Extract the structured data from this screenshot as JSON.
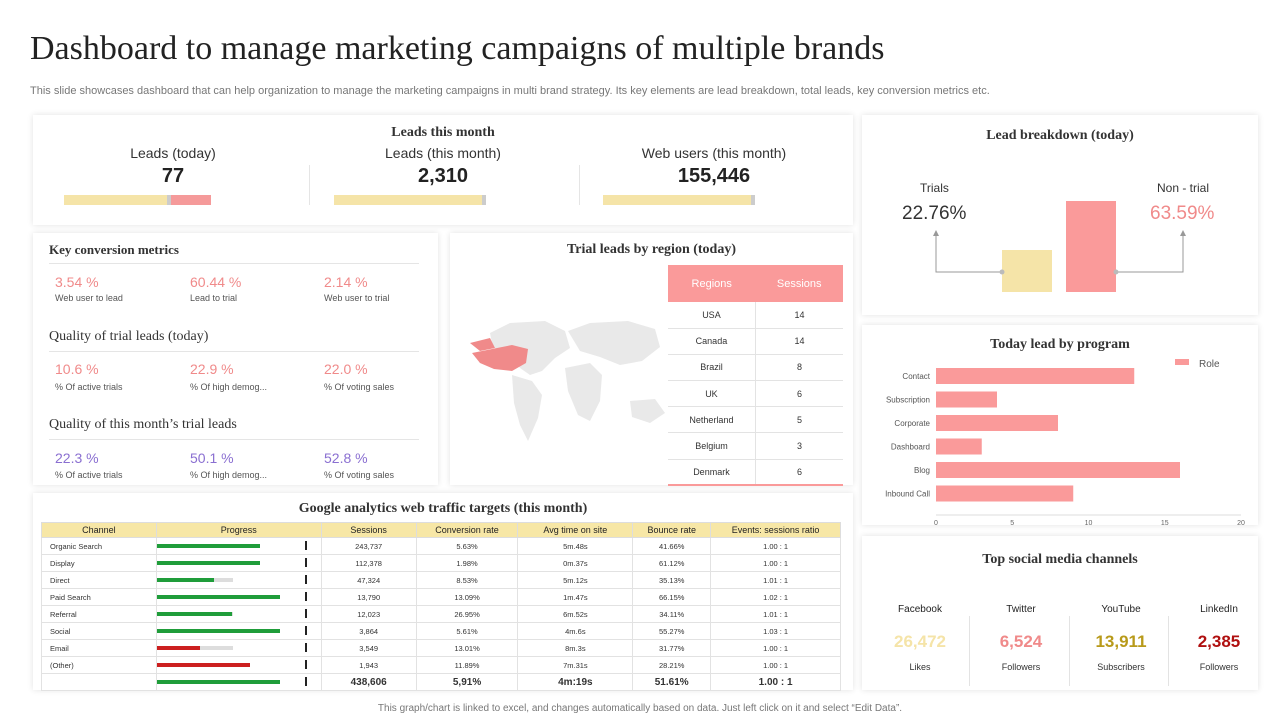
{
  "title": "Dashboard to manage marketing campaigns of multiple brands",
  "subtitle": "This slide showcases dashboard that can help organization to manage the marketing campaigns in multi brand strategy. Its key elements are lead breakdown, total leads, key conversion metrics etc.",
  "colors": {
    "pink": "#fa9a9a",
    "yellow": "#f7e7a6",
    "purple": "#8a6fd1",
    "green": "#1f9d3a",
    "red": "#cc1f1f",
    "gold": "#b89a1a",
    "darkred": "#b01010",
    "paleyellow": "#f5e4a8"
  },
  "leads_card": {
    "title": "Leads this month",
    "kpis": [
      {
        "label": "Leads (today)",
        "value": "77"
      },
      {
        "label": "Leads (this month)",
        "value": "2,310"
      },
      {
        "label": "Web users (this month)",
        "value": "155,446"
      }
    ]
  },
  "lead_breakdown": {
    "title": "Lead breakdown (today)",
    "trials_label": "Trials",
    "trials_value": "22.76%",
    "nontrial_label": "Non - trial",
    "nontrial_value": "63.59%"
  },
  "conversion": {
    "title": "Key conversion metrics",
    "metrics": [
      {
        "value": "3.54 %",
        "label": "Web user to lead"
      },
      {
        "value": "60.44 %",
        "label": "Lead to trial"
      },
      {
        "value": "2.14 %",
        "label": "Web user to trial"
      }
    ],
    "quality_today_title": "Quality of trial leads (today)",
    "quality_today": [
      {
        "value": "10.6 %",
        "label": "% Of active trials"
      },
      {
        "value": "22.9 %",
        "label": "% Of high demog..."
      },
      {
        "value": "22.0 %",
        "label": "% Of voting sales"
      }
    ],
    "quality_month_title": "Quality of this month’s trial leads",
    "quality_month": [
      {
        "value": "22.3 %",
        "label": "% Of active trials"
      },
      {
        "value": "50.1 %",
        "label": "% Of high demog..."
      },
      {
        "value": "52.8 %",
        "label": "% Of voting sales"
      }
    ]
  },
  "region": {
    "title": "Trial leads by region (today)",
    "headers": [
      "Regions",
      "Sessions"
    ],
    "rows": [
      [
        "USA",
        "14"
      ],
      [
        "Canada",
        "14"
      ],
      [
        "Brazil",
        "8"
      ],
      [
        "UK",
        "6"
      ],
      [
        "Netherland",
        "5"
      ],
      [
        "Belgium",
        "3"
      ],
      [
        "Denmark",
        "6"
      ]
    ]
  },
  "analytics": {
    "title": "Google analytics web traffic targets (this month)",
    "headers": [
      "Channel",
      "Progress",
      "Sessions",
      "Conversion rate",
      "Avg time on site",
      "Bounce rate",
      "Events: sessions ratio"
    ],
    "rows": [
      {
        "channel": "Organic Search",
        "progress": 0.69,
        "status": "green",
        "sessions": "243,737",
        "conversion": "5.63%",
        "avg_time": "5m.48s",
        "bounce": "41.66%",
        "ratio": "1.00  :  1"
      },
      {
        "channel": "Display",
        "progress": 0.69,
        "status": "green",
        "sessions": "112,378",
        "conversion": "1.98%",
        "avg_time": "0m.37s",
        "bounce": "61.12%",
        "ratio": "1.00  :  1"
      },
      {
        "channel": "Direct",
        "progress": 0.38,
        "status": "green",
        "sessions": "47,324",
        "conversion": "8.53%",
        "avg_time": "5m.12s",
        "bounce": "35.13%",
        "ratio": "1.01  :  1"
      },
      {
        "channel": "Paid Search",
        "progress": 0.82,
        "status": "green",
        "sessions": "13,790",
        "conversion": "13.09%",
        "avg_time": "1m.47s",
        "bounce": "66.15%",
        "ratio": "1.02  :  1"
      },
      {
        "channel": "Referral",
        "progress": 0.5,
        "status": "green",
        "sessions": "12,023",
        "conversion": "26.95%",
        "avg_time": "6m.52s",
        "bounce": "34.11%",
        "ratio": "1.01  :  1"
      },
      {
        "channel": "Social",
        "progress": 0.82,
        "status": "green",
        "sessions": "3,864",
        "conversion": "5.61%",
        "avg_time": "4m.6s",
        "bounce": "55.27%",
        "ratio": "1.03  :  1"
      },
      {
        "channel": "Email",
        "progress": 0.29,
        "status": "red",
        "sessions": "3,549",
        "conversion": "13.01%",
        "avg_time": "8m.3s",
        "bounce": "31.77%",
        "ratio": "1.00  :  1"
      },
      {
        "channel": "(Other)",
        "progress": 0.62,
        "status": "red",
        "sessions": "1,943",
        "conversion": "11.89%",
        "avg_time": "7m.31s",
        "bounce": "28.21%",
        "ratio": "1.00  :  1"
      }
    ],
    "total": {
      "progress": 0.82,
      "sessions": "438,606",
      "conversion": "5,91%",
      "avg_time": "4m:19s",
      "bounce": "51.61%",
      "ratio": "1.00 : 1"
    }
  },
  "chart_data": {
    "type": "bar",
    "orientation": "horizontal",
    "title": "Today lead by program",
    "categories": [
      "Contact",
      "Subscription",
      "Corporate",
      "Dashboard",
      "Blog",
      "Inbound Call"
    ],
    "series": [
      {
        "name": "Role",
        "values": [
          13,
          4,
          8,
          3,
          16,
          9
        ]
      }
    ],
    "xlim": [
      0,
      20
    ],
    "xticks": [
      "0",
      "5",
      "10",
      "15",
      "20"
    ],
    "legend": "top-right"
  },
  "social": {
    "title": "Top social media channels",
    "channels": [
      {
        "name": "Facebook",
        "value": "26,472",
        "sub": "Likes",
        "color": "#f5e4a8"
      },
      {
        "name": "Twitter",
        "value": "6,524",
        "sub": "Followers",
        "color": "#f08a8a"
      },
      {
        "name": "YouTube",
        "value": "13,911",
        "sub": "Subscribers",
        "color": "#b89a1a"
      },
      {
        "name": "LinkedIn",
        "value": "2,385",
        "sub": "Followers",
        "color": "#b01010"
      }
    ]
  },
  "footer": "This graph/chart is linked to excel, and changes automatically based on data. Just left click on it and select “Edit Data”."
}
